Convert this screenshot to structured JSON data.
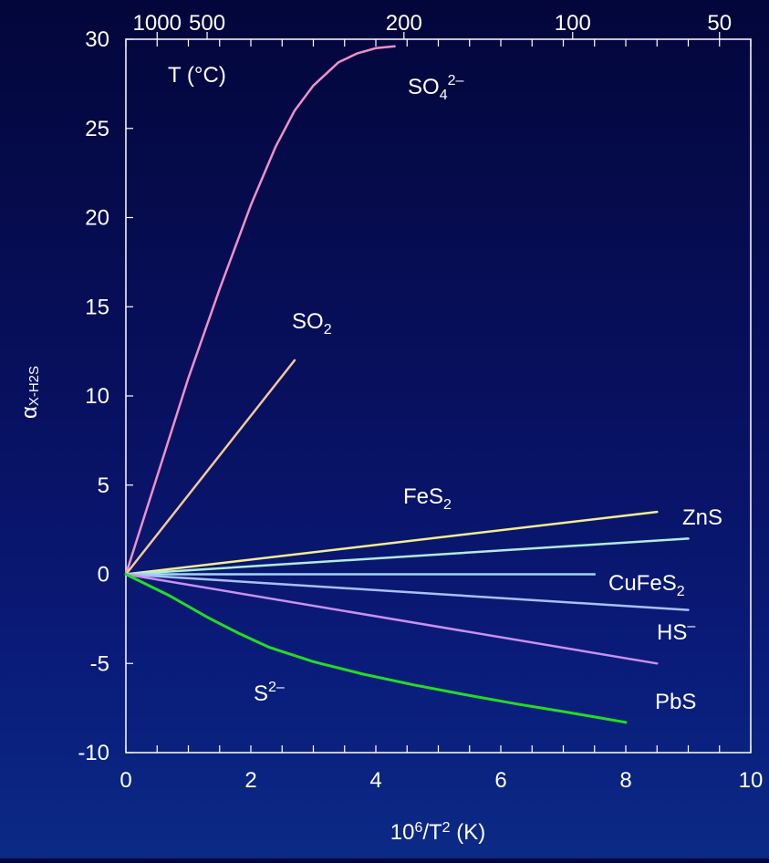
{
  "chart_data": {
    "type": "line",
    "xlabel": {
      "base": "10",
      "exp": "6",
      "mid": "/T",
      "exp2": "2",
      "tail": " (K)"
    },
    "ylabel": {
      "main": "α",
      "sub": "X-H2S"
    },
    "xlim": [
      0,
      10
    ],
    "ylim": [
      -10,
      30
    ],
    "x_ticks": [
      "0",
      "2",
      "4",
      "6",
      "8",
      "10"
    ],
    "y_ticks": [
      "-10",
      "-5",
      "0",
      "5",
      "10",
      "15",
      "20",
      "25",
      "30"
    ],
    "top_axis": {
      "label": "T (°C)",
      "ticks": [
        {
          "label": "1000",
          "value": 0.5
        },
        {
          "label": "500",
          "value": 1.3
        },
        {
          "label": "200",
          "value": 4.45
        },
        {
          "label": "100",
          "value": 7.15
        },
        {
          "label": "50",
          "value": 9.5
        }
      ]
    },
    "series": [
      {
        "name": "SO4",
        "label": {
          "base": "SO",
          "sub": "4",
          "sup": "2–"
        },
        "color": "#f090c8",
        "x": [
          0,
          0.5,
          1.0,
          1.5,
          2.0,
          2.4,
          2.7,
          3.0,
          3.4,
          3.7,
          4.0,
          4.3
        ],
        "y": [
          0,
          5.5,
          11.0,
          16.0,
          20.7,
          24.0,
          26.0,
          27.4,
          28.7,
          29.2,
          29.5,
          29.6
        ]
      },
      {
        "name": "SO2",
        "label": {
          "base": "SO",
          "sub": "2",
          "sup": ""
        },
        "color": "#f5c898",
        "x": [
          0,
          2.7
        ],
        "y": [
          0,
          12.0
        ]
      },
      {
        "name": "FeS2",
        "label": {
          "base": "FeS",
          "sub": "2",
          "sup": ""
        },
        "color": "#f5ee90",
        "x": [
          0,
          8.5
        ],
        "y": [
          0,
          3.5
        ]
      },
      {
        "name": "ZnS",
        "label": {
          "base": "ZnS",
          "sub": "",
          "sup": ""
        },
        "color": "#b0ecdc",
        "x": [
          0,
          9.0
        ],
        "y": [
          0,
          2.0
        ]
      },
      {
        "name": "CuFeS2",
        "label": {
          "base": "CuFeS",
          "sub": "2",
          "sup": ""
        },
        "color": "#a0d8f0",
        "x": [
          0,
          7.5
        ],
        "y": [
          0,
          0
        ]
      },
      {
        "name": "HS",
        "label": {
          "base": "HS",
          "sub": "",
          "sup": "–"
        },
        "color": "#a8c0f8",
        "x": [
          0,
          9.0
        ],
        "y": [
          0,
          -2.0
        ]
      },
      {
        "name": "PbS",
        "label": {
          "base": "PbS",
          "sub": "",
          "sup": ""
        },
        "color": "#c890f0",
        "x": [
          0,
          8.5
        ],
        "y": [
          0,
          -5.0
        ]
      },
      {
        "name": "S2",
        "label": {
          "base": "S",
          "sub": "",
          "sup": "2–"
        },
        "color": "#22dd22",
        "x": [
          0,
          0.7,
          1.3,
          1.8,
          2.3,
          3.0,
          3.8,
          4.6,
          5.5,
          6.3,
          7.0,
          7.5,
          8.0
        ],
        "y": [
          0,
          -1.2,
          -2.4,
          -3.3,
          -4.1,
          -4.9,
          -5.6,
          -6.2,
          -6.8,
          -7.3,
          -7.7,
          -8.0,
          -8.3
        ]
      }
    ],
    "legend": "none",
    "grid": false
  }
}
